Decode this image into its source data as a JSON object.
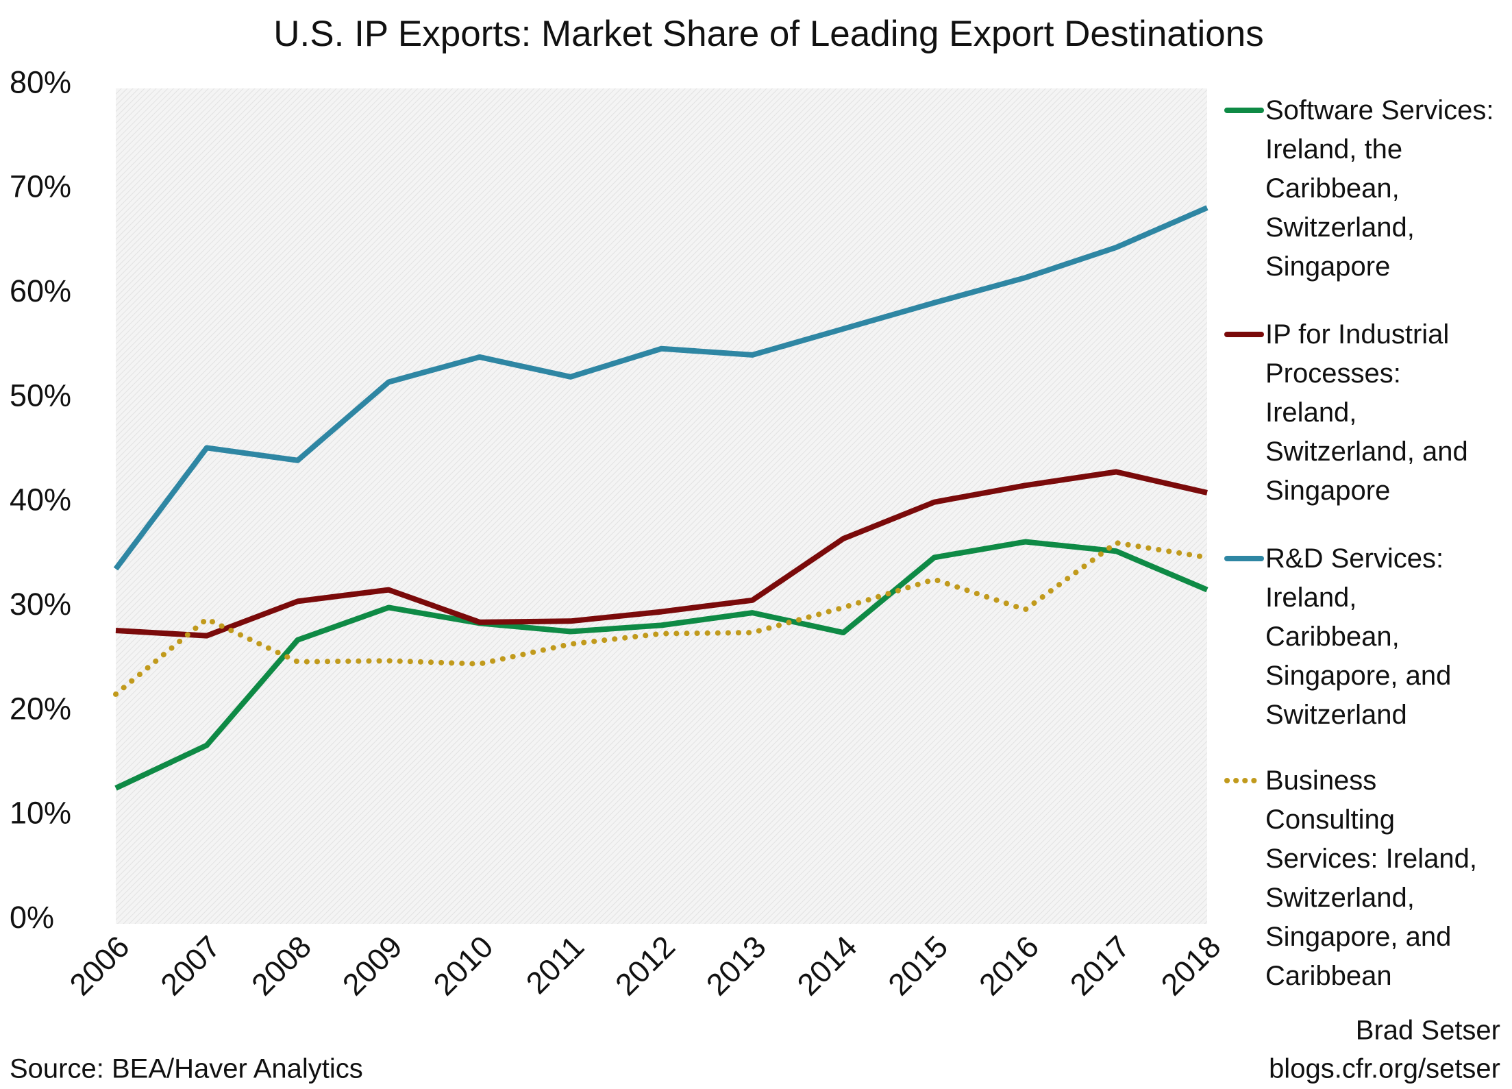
{
  "chart_data": {
    "type": "line",
    "title": "U.S. IP Exports: Market Share of Leading Export Destinations",
    "categories": [
      "2006",
      "2007",
      "2008",
      "2009",
      "2010",
      "2011",
      "2012",
      "2013",
      "2014",
      "2015",
      "2016",
      "2017",
      "2018"
    ],
    "series": [
      {
        "name": "Software Services: Ireland, the Caribbean, Switzerland, Singapore",
        "color": "#0e8a45",
        "style": "solid",
        "values": [
          13.0,
          17.1,
          27.2,
          30.3,
          28.8,
          28.0,
          28.6,
          29.8,
          27.9,
          35.1,
          36.6,
          35.7,
          32.0
        ]
      },
      {
        "name": "IP for Industrial Processes: Ireland, Switzerland, and Singapore",
        "color": "#7a0a0a",
        "style": "solid",
        "values": [
          28.1,
          27.6,
          30.9,
          32.0,
          28.9,
          29.0,
          29.9,
          31.0,
          36.9,
          40.4,
          42.0,
          43.3,
          41.3
        ]
      },
      {
        "name": "R&D Services: Ireland, Caribbean, Singapore, and Switzerland",
        "color": "#2e86a3",
        "style": "solid",
        "values": [
          34.0,
          45.6,
          44.4,
          51.9,
          54.3,
          52.4,
          55.1,
          54.5,
          57.0,
          59.5,
          61.9,
          64.8,
          68.6
        ]
      },
      {
        "name": "Business Consulting Services: Ireland, Switzerland, Singapore, and Caribbean",
        "color": "#c19a1c",
        "style": "dotted",
        "values": [
          22.0,
          29.2,
          25.1,
          25.2,
          24.9,
          26.8,
          27.8,
          27.9,
          30.3,
          33.0,
          30.1,
          36.5,
          35.1
        ]
      }
    ],
    "ylim": [
      0,
      80
    ],
    "yticks": [
      {
        "value": 0,
        "label": "0%"
      },
      {
        "value": 10,
        "label": "10%"
      },
      {
        "value": 20,
        "label": "20%"
      },
      {
        "value": 30,
        "label": "30%"
      },
      {
        "value": 40,
        "label": "40%"
      },
      {
        "value": 50,
        "label": "50%"
      },
      {
        "value": 60,
        "label": "60%"
      },
      {
        "value": 70,
        "label": "70%"
      },
      {
        "value": 80,
        "label": "80%"
      }
    ],
    "legend": "right",
    "source": "Source: BEA/Haver Analytics",
    "credits": [
      "Brad Setser",
      "blogs.cfr.org/setser"
    ]
  }
}
